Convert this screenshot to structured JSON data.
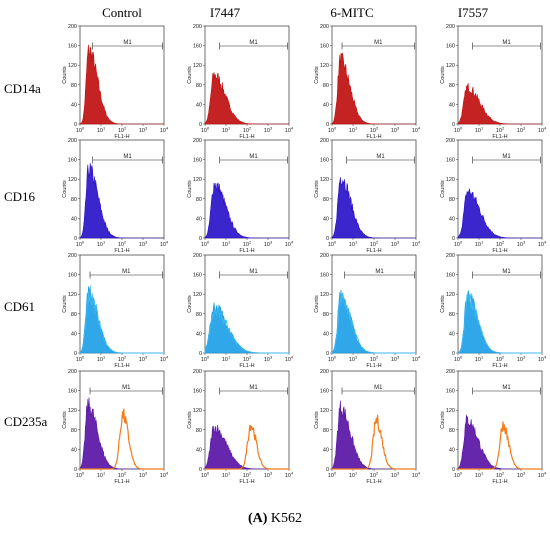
{
  "columns": [
    "Control",
    "I7447",
    "6-MITC",
    "I7557"
  ],
  "rows": [
    "CD14a",
    "CD16",
    "CD61",
    "CD235a"
  ],
  "caption": {
    "panel": "A",
    "text": " K562"
  },
  "chart_data": {
    "type": "area",
    "panel_grid": "4 rows x 4 columns of flow cytometry histograms",
    "xlabel": "FL1-H",
    "ylabel": "Counts",
    "x_scale": "log",
    "xlim": [
      1,
      10000
    ],
    "x_ticks": [
      {
        "base": "10",
        "exp": "0"
      },
      {
        "base": "10",
        "exp": "1"
      },
      {
        "base": "10",
        "exp": "2"
      },
      {
        "base": "10",
        "exp": "3"
      },
      {
        "base": "10",
        "exp": "4"
      }
    ],
    "ylim": [
      0,
      200
    ],
    "y_ticks": [
      "0",
      "40",
      "80",
      "120",
      "160",
      "200"
    ],
    "gate_label": "M1",
    "series_colors": {
      "CD14a": "#c01010",
      "CD16": "#2a12c8",
      "CD61": "#1e9fe6",
      "CD235a_isotype": "#5a15a5",
      "CD235a_stain": "#f47a1a"
    },
    "panels": [
      {
        "row": "CD14a",
        "column": "Control",
        "gate_start": 4,
        "peak_x": 2.6,
        "peak_y": 150,
        "width": 0.16
      },
      {
        "row": "CD14a",
        "column": "I7447",
        "gate_start": 5,
        "peak_x": 2.7,
        "peak_y": 100,
        "width": 0.2
      },
      {
        "row": "CD14a",
        "column": "6-MITC",
        "gate_start": 3,
        "peak_x": 2.5,
        "peak_y": 130,
        "width": 0.17
      },
      {
        "row": "CD14a",
        "column": "I7557",
        "gate_start": 5,
        "peak_x": 2.8,
        "peak_y": 75,
        "width": 0.22
      },
      {
        "row": "CD16",
        "column": "Control",
        "gate_start": 4,
        "peak_x": 2.6,
        "peak_y": 140,
        "width": 0.17
      },
      {
        "row": "CD16",
        "column": "I7447",
        "gate_start": 5,
        "peak_x": 2.8,
        "peak_y": 110,
        "width": 0.2
      },
      {
        "row": "CD16",
        "column": "6-MITC",
        "gate_start": 5,
        "peak_x": 2.6,
        "peak_y": 125,
        "width": 0.18
      },
      {
        "row": "CD16",
        "column": "I7557",
        "gate_start": 5,
        "peak_x": 2.9,
        "peak_y": 95,
        "width": 0.22
      },
      {
        "row": "CD61",
        "column": "Control",
        "gate_start": 3,
        "peak_x": 2.5,
        "peak_y": 125,
        "width": 0.17
      },
      {
        "row": "CD61",
        "column": "I7447",
        "gate_start": 5,
        "peak_x": 2.7,
        "peak_y": 95,
        "width": 0.24
      },
      {
        "row": "CD61",
        "column": "6-MITC",
        "gate_start": 4,
        "peak_x": 2.6,
        "peak_y": 120,
        "width": 0.18
      },
      {
        "row": "CD61",
        "column": "I7557",
        "gate_start": 5,
        "peak_x": 2.8,
        "peak_y": 120,
        "width": 0.18
      },
      {
        "row": "CD235a",
        "column": "Control",
        "gate_start": 3,
        "peak_x": 2.4,
        "peak_y": 130,
        "width": 0.17,
        "stain_peak_x": 110,
        "stain_peak_y": 110
      },
      {
        "row": "CD235a",
        "column": "I7447",
        "gate_start": 5,
        "peak_x": 2.7,
        "peak_y": 85,
        "width": 0.22,
        "stain_peak_x": 150,
        "stain_peak_y": 90
      },
      {
        "row": "CD235a",
        "column": "6-MITC",
        "gate_start": 3,
        "peak_x": 2.5,
        "peak_y": 125,
        "width": 0.18,
        "stain_peak_x": 130,
        "stain_peak_y": 100
      },
      {
        "row": "CD235a",
        "column": "I7557",
        "gate_start": 5,
        "peak_x": 2.7,
        "peak_y": 100,
        "width": 0.2,
        "stain_peak_x": 140,
        "stain_peak_y": 90
      }
    ]
  }
}
